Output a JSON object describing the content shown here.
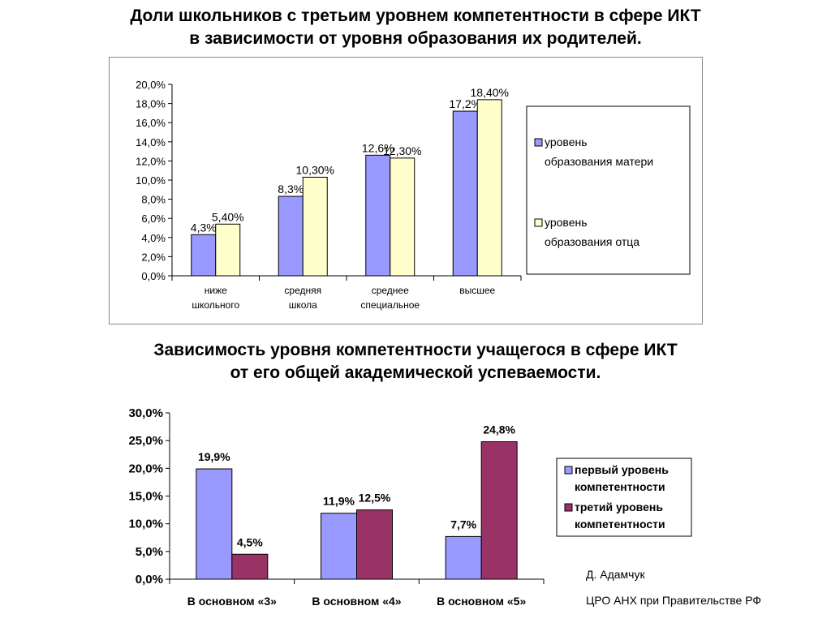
{
  "slide": {
    "title1_line1": "Доли школьников с третьим уровнем компетентности в сфере ИКТ",
    "title1_line2": "в зависимости от уровня образования их родителей.",
    "title2_line1": "Зависимость уровня компетентности учащегося в сфере ИКТ",
    "title2_line2": "от его общей академической успеваемости.",
    "credit_author": "Д. Адамчук",
    "credit_org": "ЦРО АНХ при Правительстве РФ"
  },
  "chart_data": [
    {
      "type": "bar",
      "categories": [
        [
          "ниже",
          "школьного"
        ],
        [
          "средняя",
          "школа"
        ],
        [
          "среднее",
          "специальное"
        ],
        [
          "высшее"
        ]
      ],
      "series": [
        {
          "name": "уровень образования матери",
          "legend_lines": [
            "уровень",
            "образования матери"
          ],
          "values": [
            4.3,
            8.3,
            12.6,
            17.2
          ],
          "labels": [
            "4,3%",
            "8,3%",
            "12,6%",
            "17,2%"
          ],
          "color": "#9999ff"
        },
        {
          "name": "уровень образования отца",
          "legend_lines": [
            "уровень",
            "образования отца"
          ],
          "values": [
            5.4,
            10.3,
            12.3,
            18.4
          ],
          "labels": [
            "5,40%",
            "10,30%",
            "12,30%",
            "18,40%"
          ],
          "color": "#ffffcc"
        }
      ],
      "yticks": [
        "0,0%",
        "2,0%",
        "4,0%",
        "6,0%",
        "8,0%",
        "10,0%",
        "12,0%",
        "14,0%",
        "16,0%",
        "18,0%",
        "20,0%"
      ],
      "ylim": [
        0,
        20
      ],
      "grid": false,
      "legend": "right"
    },
    {
      "type": "bar",
      "categories": [
        [
          "В основном «3»"
        ],
        [
          "В основном «4»"
        ],
        [
          "В основном «5»"
        ]
      ],
      "series": [
        {
          "name": "первый уровень компетентности",
          "legend_lines": [
            "первый уровень",
            "компетентности"
          ],
          "values": [
            19.9,
            11.9,
            7.7
          ],
          "labels": [
            "19,9%",
            "11,9%",
            "7,7%"
          ],
          "color": "#9999ff"
        },
        {
          "name": "третий уровень компетентности",
          "legend_lines": [
            "третий уровень",
            "компетентности"
          ],
          "values": [
            4.5,
            12.5,
            24.8
          ],
          "labels": [
            "4,5%",
            "12,5%",
            "24,8%"
          ],
          "color": "#993366"
        }
      ],
      "yticks": [
        "0,0%",
        "5,0%",
        "10,0%",
        "15,0%",
        "20,0%",
        "25,0%",
        "30,0%"
      ],
      "ylim": [
        0,
        30
      ],
      "grid": false,
      "legend": "right"
    }
  ]
}
